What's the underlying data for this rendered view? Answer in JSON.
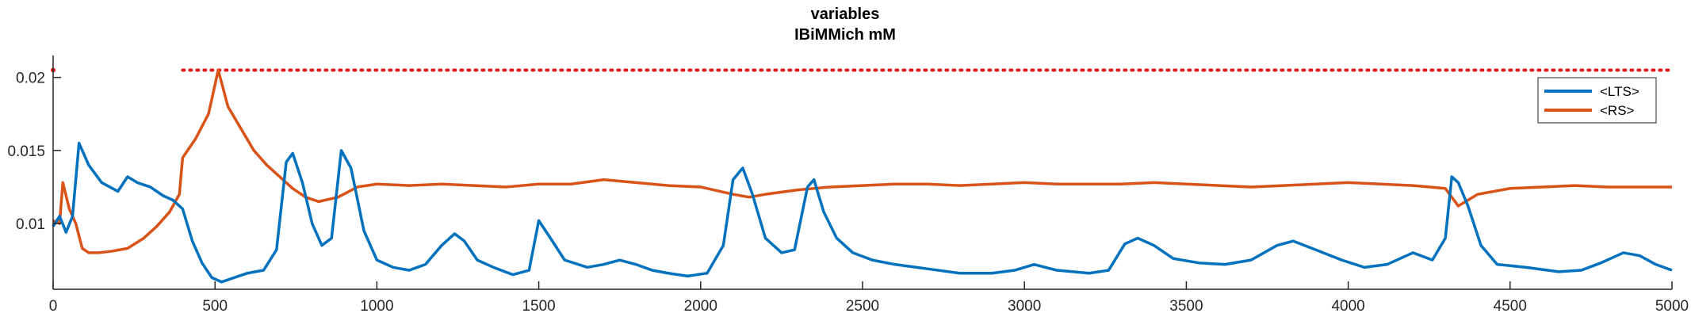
{
  "chart_data": {
    "type": "line",
    "title": "variables",
    "subtitle": "IBiMMich mM",
    "xlabel": "",
    "ylabel": "",
    "xlim": [
      0,
      5000
    ],
    "ylim": [
      0.0055,
      0.0215
    ],
    "grid": false,
    "legend_position": "top-right",
    "x_ticks": [
      0,
      500,
      1000,
      1500,
      2000,
      2500,
      3000,
      3500,
      4000,
      4500,
      5000
    ],
    "x_tick_labels": [
      "0",
      "500",
      "1000",
      "1500",
      "2000",
      "2500",
      "3000",
      "3500",
      "4000",
      "4500",
      "5000"
    ],
    "y_ticks": [
      0.01,
      0.015,
      0.02
    ],
    "y_tick_labels": [
      "0.01",
      "0.015",
      "0.02"
    ],
    "reference_line": {
      "y": 0.0205,
      "x_start": 400,
      "x_end": 5000,
      "style": "dotted",
      "color": "#e31a1c"
    },
    "series": [
      {
        "name": "<LTS>",
        "color": "#0072bd",
        "points": [
          [
            0,
            0.0098
          ],
          [
            20,
            0.0105
          ],
          [
            40,
            0.0094
          ],
          [
            60,
            0.0105
          ],
          [
            80,
            0.0155
          ],
          [
            110,
            0.014
          ],
          [
            150,
            0.0128
          ],
          [
            200,
            0.0122
          ],
          [
            230,
            0.0132
          ],
          [
            260,
            0.0128
          ],
          [
            300,
            0.0125
          ],
          [
            340,
            0.0119
          ],
          [
            370,
            0.0116
          ],
          [
            400,
            0.011
          ],
          [
            430,
            0.0088
          ],
          [
            460,
            0.0073
          ],
          [
            490,
            0.0063
          ],
          [
            520,
            0.006
          ],
          [
            560,
            0.0063
          ],
          [
            600,
            0.0066
          ],
          [
            650,
            0.0068
          ],
          [
            690,
            0.0082
          ],
          [
            720,
            0.0142
          ],
          [
            740,
            0.0148
          ],
          [
            770,
            0.0128
          ],
          [
            800,
            0.01
          ],
          [
            830,
            0.0085
          ],
          [
            860,
            0.009
          ],
          [
            890,
            0.015
          ],
          [
            920,
            0.0138
          ],
          [
            960,
            0.0095
          ],
          [
            1000,
            0.0075
          ],
          [
            1050,
            0.007
          ],
          [
            1100,
            0.0068
          ],
          [
            1150,
            0.0072
          ],
          [
            1200,
            0.0085
          ],
          [
            1240,
            0.0093
          ],
          [
            1270,
            0.0088
          ],
          [
            1310,
            0.0075
          ],
          [
            1360,
            0.007
          ],
          [
            1420,
            0.0065
          ],
          [
            1470,
            0.0068
          ],
          [
            1500,
            0.0102
          ],
          [
            1530,
            0.0092
          ],
          [
            1580,
            0.0075
          ],
          [
            1650,
            0.007
          ],
          [
            1700,
            0.0072
          ],
          [
            1750,
            0.0075
          ],
          [
            1800,
            0.0072
          ],
          [
            1850,
            0.0068
          ],
          [
            1900,
            0.0066
          ],
          [
            1960,
            0.0064
          ],
          [
            2020,
            0.0066
          ],
          [
            2070,
            0.0085
          ],
          [
            2100,
            0.013
          ],
          [
            2130,
            0.0138
          ],
          [
            2160,
            0.012
          ],
          [
            2200,
            0.009
          ],
          [
            2250,
            0.008
          ],
          [
            2290,
            0.0082
          ],
          [
            2330,
            0.0125
          ],
          [
            2350,
            0.013
          ],
          [
            2380,
            0.0108
          ],
          [
            2420,
            0.009
          ],
          [
            2470,
            0.008
          ],
          [
            2530,
            0.0075
          ],
          [
            2600,
            0.0072
          ],
          [
            2700,
            0.0069
          ],
          [
            2800,
            0.0066
          ],
          [
            2900,
            0.0066
          ],
          [
            2970,
            0.0068
          ],
          [
            3030,
            0.0072
          ],
          [
            3100,
            0.0068
          ],
          [
            3200,
            0.0066
          ],
          [
            3260,
            0.0068
          ],
          [
            3310,
            0.0086
          ],
          [
            3350,
            0.009
          ],
          [
            3400,
            0.0085
          ],
          [
            3460,
            0.0076
          ],
          [
            3540,
            0.0073
          ],
          [
            3620,
            0.0072
          ],
          [
            3700,
            0.0075
          ],
          [
            3780,
            0.0085
          ],
          [
            3830,
            0.0088
          ],
          [
            3900,
            0.0082
          ],
          [
            3980,
            0.0075
          ],
          [
            4050,
            0.007
          ],
          [
            4120,
            0.0072
          ],
          [
            4200,
            0.008
          ],
          [
            4260,
            0.0075
          ],
          [
            4300,
            0.009
          ],
          [
            4320,
            0.0132
          ],
          [
            4340,
            0.0128
          ],
          [
            4370,
            0.0112
          ],
          [
            4410,
            0.0085
          ],
          [
            4460,
            0.0072
          ],
          [
            4550,
            0.007
          ],
          [
            4650,
            0.0067
          ],
          [
            4720,
            0.0068
          ],
          [
            4780,
            0.0073
          ],
          [
            4850,
            0.008
          ],
          [
            4900,
            0.0078
          ],
          [
            4950,
            0.0072
          ],
          [
            5000,
            0.0068
          ]
        ]
      },
      {
        "name": "<RS>",
        "color": "#d95319",
        "points": [
          [
            0,
            0.0102
          ],
          [
            20,
            0.01
          ],
          [
            30,
            0.0128
          ],
          [
            50,
            0.011
          ],
          [
            70,
            0.01
          ],
          [
            90,
            0.0083
          ],
          [
            110,
            0.008
          ],
          [
            140,
            0.008
          ],
          [
            180,
            0.0081
          ],
          [
            230,
            0.0083
          ],
          [
            280,
            0.009
          ],
          [
            320,
            0.0098
          ],
          [
            360,
            0.0108
          ],
          [
            390,
            0.012
          ],
          [
            400,
            0.0145
          ],
          [
            440,
            0.0158
          ],
          [
            480,
            0.0175
          ],
          [
            510,
            0.0205
          ],
          [
            540,
            0.018
          ],
          [
            580,
            0.0165
          ],
          [
            620,
            0.015
          ],
          [
            660,
            0.014
          ],
          [
            700,
            0.0132
          ],
          [
            740,
            0.0124
          ],
          [
            780,
            0.0118
          ],
          [
            820,
            0.0115
          ],
          [
            880,
            0.0118
          ],
          [
            940,
            0.0125
          ],
          [
            1000,
            0.0127
          ],
          [
            1100,
            0.0126
          ],
          [
            1200,
            0.0127
          ],
          [
            1300,
            0.0126
          ],
          [
            1400,
            0.0125
          ],
          [
            1500,
            0.0127
          ],
          [
            1600,
            0.0127
          ],
          [
            1700,
            0.013
          ],
          [
            1800,
            0.0128
          ],
          [
            1900,
            0.0126
          ],
          [
            2000,
            0.0125
          ],
          [
            2100,
            0.012
          ],
          [
            2150,
            0.0118
          ],
          [
            2200,
            0.012
          ],
          [
            2300,
            0.0123
          ],
          [
            2400,
            0.0125
          ],
          [
            2500,
            0.0126
          ],
          [
            2600,
            0.0127
          ],
          [
            2700,
            0.0127
          ],
          [
            2800,
            0.0126
          ],
          [
            2900,
            0.0127
          ],
          [
            3000,
            0.0128
          ],
          [
            3100,
            0.0127
          ],
          [
            3200,
            0.0127
          ],
          [
            3300,
            0.0127
          ],
          [
            3400,
            0.0128
          ],
          [
            3500,
            0.0127
          ],
          [
            3600,
            0.0126
          ],
          [
            3700,
            0.0125
          ],
          [
            3800,
            0.0126
          ],
          [
            3900,
            0.0127
          ],
          [
            4000,
            0.0128
          ],
          [
            4100,
            0.0127
          ],
          [
            4200,
            0.0126
          ],
          [
            4300,
            0.0124
          ],
          [
            4340,
            0.0112
          ],
          [
            4400,
            0.012
          ],
          [
            4500,
            0.0124
          ],
          [
            4600,
            0.0125
          ],
          [
            4700,
            0.0126
          ],
          [
            4800,
            0.0125
          ],
          [
            4900,
            0.0125
          ],
          [
            5000,
            0.0125
          ]
        ]
      }
    ]
  }
}
